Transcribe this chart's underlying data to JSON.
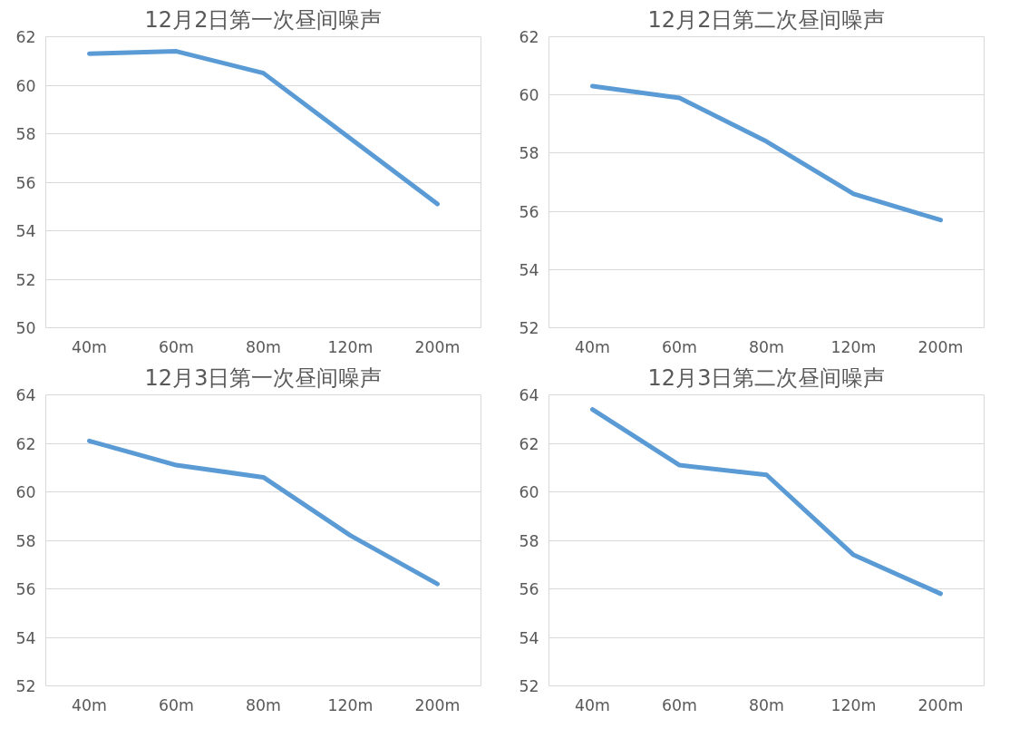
{
  "chart_data": [
    {
      "type": "line",
      "title": "12月2日第一次昼间噪声",
      "categories": [
        "40m",
        "60m",
        "80m",
        "120m",
        "200m"
      ],
      "series": [
        {
          "color": "#5b9bd5",
          "values": [
            61.3,
            61.4,
            60.5,
            57.8,
            55.1
          ]
        }
      ],
      "ylim": [
        50,
        62
      ],
      "yticks": [
        50,
        52,
        54,
        56,
        58,
        60,
        62
      ],
      "grid": "y"
    },
    {
      "type": "line",
      "title": "12月2日第二次昼间噪声",
      "categories": [
        "40m",
        "60m",
        "80m",
        "120m",
        "200m"
      ],
      "series": [
        {
          "color": "#5b9bd5",
          "values": [
            60.3,
            59.9,
            58.4,
            56.6,
            55.7
          ]
        }
      ],
      "ylim": [
        52,
        62
      ],
      "yticks": [
        52,
        54,
        56,
        58,
        60,
        62
      ],
      "grid": "y"
    },
    {
      "type": "line",
      "title": "12月3日第一次昼间噪声",
      "categories": [
        "40m",
        "60m",
        "80m",
        "120m",
        "200m"
      ],
      "series": [
        {
          "color": "#5b9bd5",
          "values": [
            62.1,
            61.1,
            60.6,
            58.2,
            56.2
          ]
        }
      ],
      "ylim": [
        52,
        64
      ],
      "yticks": [
        52,
        54,
        56,
        58,
        60,
        62,
        64
      ],
      "grid": "y"
    },
    {
      "type": "line",
      "title": "12月3日第二次昼间噪声",
      "categories": [
        "40m",
        "60m",
        "80m",
        "120m",
        "200m"
      ],
      "series": [
        {
          "color": "#5b9bd5",
          "values": [
            63.4,
            61.1,
            60.7,
            57.4,
            55.8
          ]
        }
      ],
      "ylim": [
        52,
        64
      ],
      "yticks": [
        52,
        54,
        56,
        58,
        60,
        62,
        64
      ],
      "grid": "y"
    }
  ]
}
